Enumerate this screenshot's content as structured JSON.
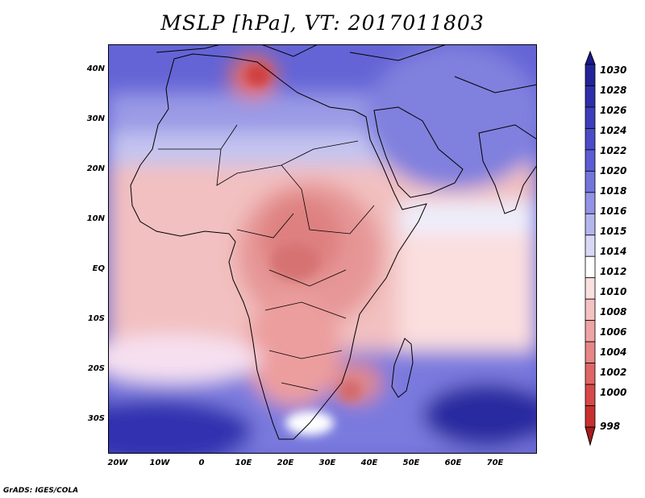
{
  "title": "MSLP [hPa], VT: 2017011803",
  "credit": "GrADS: IGES/COLA",
  "map": {
    "region": "Africa, Middle East and Indian Ocean",
    "lat_labels": [
      "40N",
      "30N",
      "20N",
      "10N",
      "EQ",
      "10S",
      "20S",
      "30S"
    ],
    "lon_labels": [
      "20W",
      "10W",
      "0",
      "10E",
      "20E",
      "30E",
      "40E",
      "50E",
      "60E",
      "70E"
    ]
  },
  "colorbar": {
    "levels": [
      "1030",
      "1028",
      "1026",
      "1024",
      "1022",
      "1020",
      "1018",
      "1016",
      "1015",
      "1014",
      "1012",
      "1010",
      "1008",
      "1006",
      "1004",
      "1002",
      "1000",
      "998"
    ],
    "colors": [
      "#1a1a8a",
      "#232399",
      "#2e2eaa",
      "#3d3dbb",
      "#4b4bc8",
      "#5c5cd4",
      "#7474dd",
      "#9393e6",
      "#b5b5ee",
      "#d8d8f6",
      "#ffffff",
      "#fbe0e0",
      "#f4c2c2",
      "#eea4a4",
      "#e78686",
      "#e06666",
      "#d84848",
      "#c83030",
      "#a71b1b"
    ]
  }
}
